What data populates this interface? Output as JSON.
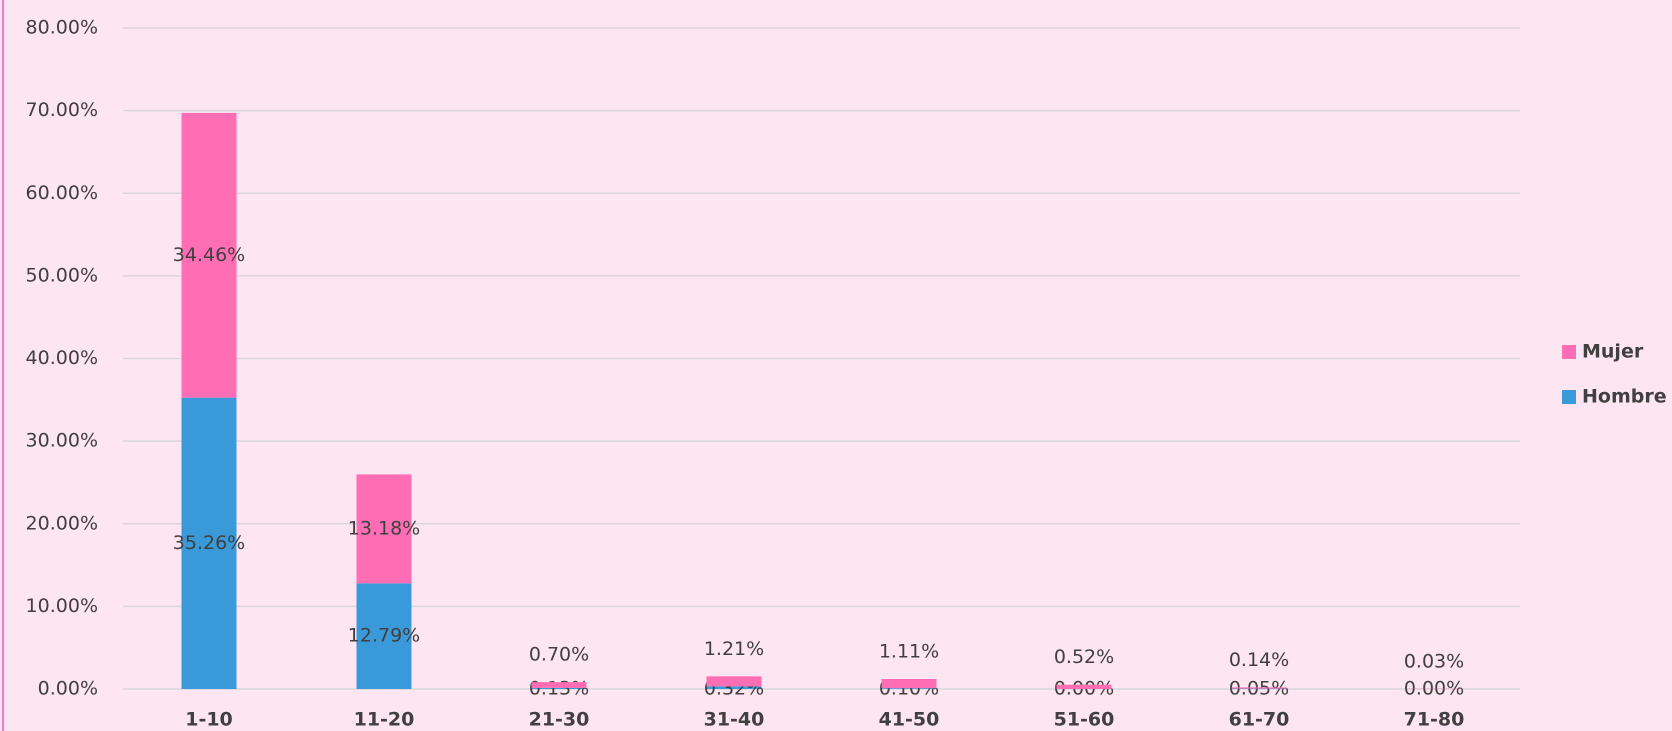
{
  "chart_data": {
    "type": "stacked_bar",
    "categories": [
      "1-10",
      "11-20",
      "21-30",
      "31-40",
      "41-50",
      "51-60",
      "61-70",
      "71-80"
    ],
    "series": [
      {
        "name": "Hombre",
        "color": "#3a99d8",
        "values": [
          35.26,
          12.79,
          0.13,
          0.32,
          0.1,
          0.0,
          0.05,
          0.0
        ],
        "value_labels": [
          "35.26%",
          "12.79%",
          "0.13%",
          "0.32%",
          "0.10%",
          "0.00%",
          "0.05%",
          "0.00%"
        ]
      },
      {
        "name": "Mujer",
        "color": "#ff6eb4",
        "values": [
          34.46,
          13.18,
          0.7,
          1.21,
          1.11,
          0.52,
          0.14,
          0.03
        ],
        "value_labels": [
          "34.46%",
          "13.18%",
          "0.70%",
          "1.21%",
          "1.11%",
          "0.52%",
          "0.14%",
          "0.03%"
        ]
      }
    ],
    "ylim": [
      0,
      80
    ],
    "yticks": [
      {
        "value": 0,
        "label": "0.00%"
      },
      {
        "value": 10,
        "label": "10.00%"
      },
      {
        "value": 20,
        "label": "20.00%"
      },
      {
        "value": 30,
        "label": "30.00%"
      },
      {
        "value": 40,
        "label": "40.00%"
      },
      {
        "value": 50,
        "label": "50.00%"
      },
      {
        "value": 60,
        "label": "60.00%"
      },
      {
        "value": 70,
        "label": "70.00%"
      },
      {
        "value": 80,
        "label": "80.00%"
      }
    ],
    "grid": true,
    "legend": "right"
  }
}
